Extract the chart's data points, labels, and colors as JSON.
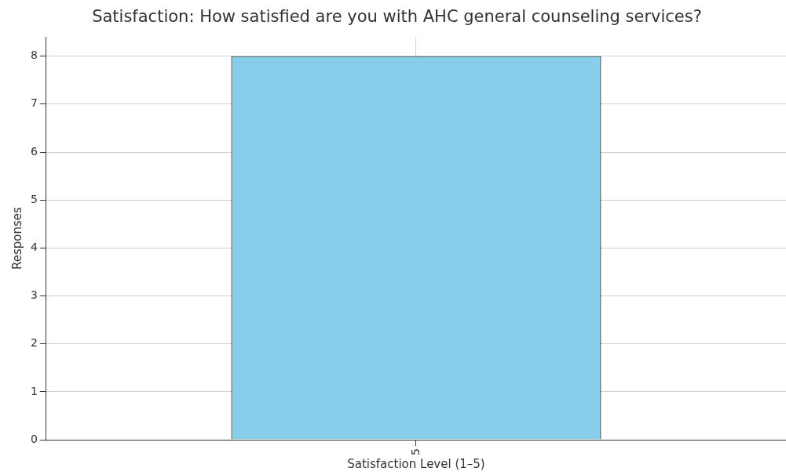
{
  "chart_data": {
    "type": "bar",
    "title": "Satisfaction: How satisfied are you with AHC general counseling services?",
    "xlabel": "Satisfaction Level (1–5)",
    "ylabel": "Responses",
    "categories": [
      "5"
    ],
    "values": [
      8
    ],
    "color": "#87ceeb",
    "ylim": [
      0,
      8.4
    ],
    "yticks": [
      0,
      1,
      2,
      3,
      4,
      5,
      6,
      7,
      8
    ],
    "grid": true
  }
}
